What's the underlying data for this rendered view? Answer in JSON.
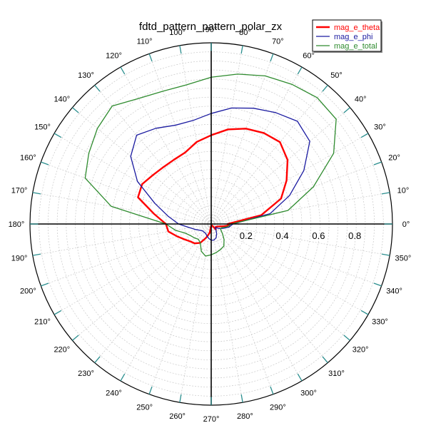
{
  "chart_data": {
    "type": "polar-line",
    "title": "fdtd_pattern_pattern_polar_zx",
    "angle_unit": "deg",
    "r_range": [
      0,
      1.0
    ],
    "r_ticks": [
      0.2,
      0.4,
      0.6,
      0.8
    ],
    "r_tick_labels": [
      "0.2",
      "0.4",
      "0.6",
      "0.8"
    ],
    "angle_ticks": [
      0,
      10,
      20,
      30,
      40,
      50,
      60,
      70,
      80,
      90,
      100,
      110,
      120,
      130,
      140,
      150,
      160,
      170,
      180,
      190,
      200,
      210,
      220,
      230,
      240,
      250,
      260,
      270,
      280,
      290,
      300,
      310,
      320,
      330,
      340,
      350
    ],
    "angle_tick_labels": [
      "0°",
      "10°",
      "20°",
      "30°",
      "40°",
      "50°",
      "60°",
      "70°",
      "80°",
      "90°",
      "100°",
      "110°",
      "120°",
      "130°",
      "140°",
      "150°",
      "160°",
      "170°",
      "180°",
      "190°",
      "200°",
      "210°",
      "220°",
      "230°",
      "240°",
      "250°",
      "260°",
      "270°",
      "280°",
      "290°",
      "300°",
      "310°",
      "320°",
      "330°",
      "340°",
      "350°"
    ],
    "grid": true,
    "legend_position": "top-right",
    "colors": {
      "axis": "#000000",
      "grid": "#c8c8c8",
      "tick": "#2a8e8e"
    },
    "series": [
      {
        "name": "mag_e_theta",
        "color": "#ff0000",
        "angles": [
          0,
          10,
          20,
          30,
          40,
          50,
          60,
          70,
          80,
          90,
          100,
          110,
          120,
          130,
          140,
          150,
          160,
          170,
          180,
          190,
          200,
          210,
          220,
          230,
          240,
          250,
          260,
          270,
          280,
          290,
          300,
          310,
          320,
          330,
          340,
          350,
          355,
          360
        ],
        "r": [
          0.09,
          0.28,
          0.41,
          0.48,
          0.55,
          0.59,
          0.58,
          0.56,
          0.53,
          0.49,
          0.46,
          0.42,
          0.41,
          0.41,
          0.42,
          0.44,
          0.43,
          0.32,
          0.25,
          0.24,
          0.2,
          0.17,
          0.15,
          0.14,
          0.12,
          0.08,
          0.05,
          0.01,
          0.01,
          0.01,
          0.01,
          0.04,
          0.03,
          0.03,
          0.04,
          0.07,
          0.1,
          0.09
        ]
      },
      {
        "name": "mag_e_phi",
        "color": "#1a1aa0",
        "angles": [
          0,
          10,
          20,
          30,
          40,
          50,
          60,
          70,
          80,
          90,
          100,
          110,
          120,
          130,
          140,
          150,
          160,
          170,
          180,
          190,
          200,
          210,
          220,
          230,
          240,
          250,
          260,
          270,
          280,
          290,
          300,
          310,
          320,
          330,
          340,
          350,
          360
        ],
        "r": [
          0.12,
          0.33,
          0.46,
          0.59,
          0.71,
          0.74,
          0.71,
          0.68,
          0.65,
          0.61,
          0.58,
          0.58,
          0.61,
          0.64,
          0.58,
          0.47,
          0.33,
          0.24,
          0.18,
          0.12,
          0.09,
          0.07,
          0.06,
          0.06,
          0.06,
          0.07,
          0.08,
          0.09,
          0.09,
          0.08,
          0.06,
          0.04,
          0.03,
          0.05,
          0.07,
          0.1,
          0.12
        ]
      },
      {
        "name": "mag_e_total",
        "color": "#2e8b2e",
        "angles": [
          0,
          10,
          20,
          30,
          40,
          50,
          60,
          70,
          80,
          90,
          100,
          110,
          120,
          130,
          140,
          150,
          160,
          170,
          180,
          190,
          200,
          210,
          220,
          230,
          240,
          250,
          260,
          270,
          280,
          290,
          300,
          310,
          320,
          330,
          340,
          350,
          360
        ],
        "r": [
          0.11,
          0.43,
          0.6,
          0.78,
          0.9,
          0.91,
          0.89,
          0.87,
          0.84,
          0.81,
          0.78,
          0.78,
          0.8,
          0.85,
          0.82,
          0.78,
          0.74,
          0.56,
          0.25,
          0.2,
          0.15,
          0.13,
          0.12,
          0.11,
          0.12,
          0.16,
          0.18,
          0.17,
          0.16,
          0.15,
          0.14,
          0.11,
          0.08,
          0.06,
          0.06,
          0.09,
          0.11
        ]
      }
    ]
  }
}
